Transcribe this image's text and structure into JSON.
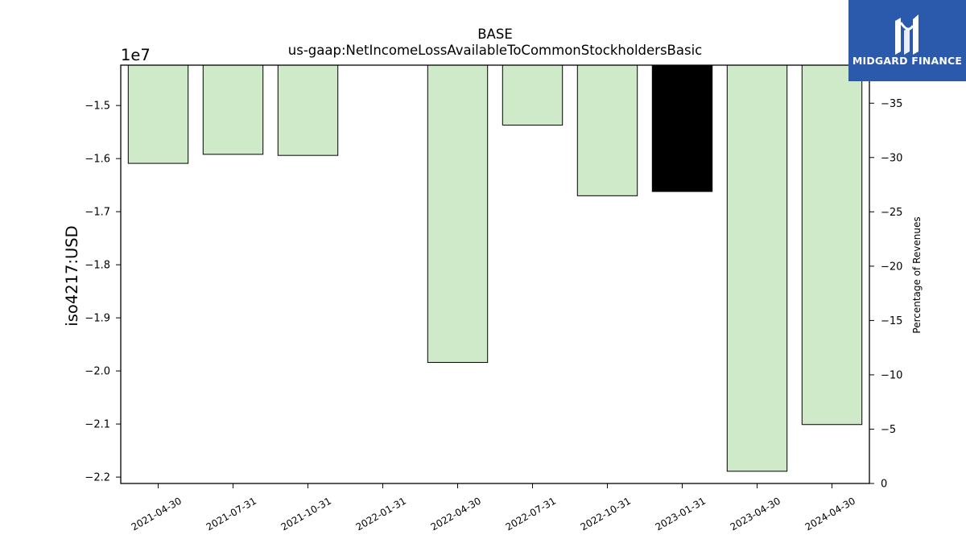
{
  "logo": {
    "text": "MIDGARD FINANCE",
    "background": "#2b5aac"
  },
  "chart_data": {
    "type": "bar",
    "title": "BASE",
    "subtitle": "us-gaap:NetIncomeLossAvailableToCommonStockholdersBasic",
    "ylabel": "iso4217:USD",
    "y2label": "Percentage of Revenues",
    "offset_text": "1e7",
    "categories": [
      "2021-04-30",
      "2021-07-31",
      "2021-10-31",
      "2022-01-31",
      "2022-04-30",
      "2022-07-31",
      "2022-10-31",
      "2023-01-31",
      "2023-04-30",
      "2024-04-30"
    ],
    "values": [
      -16090000,
      -15920000,
      -15940000,
      null,
      -19840000,
      -15370000,
      -16700000,
      -16620000,
      -21890000,
      -21010000
    ],
    "bar_colors": [
      "#cfeac8",
      "#cfeac8",
      "#cfeac8",
      "#cfeac8",
      "#cfeac8",
      "#cfeac8",
      "#cfeac8",
      "#000000",
      "#cfeac8",
      "#cfeac8"
    ],
    "ylim": [
      -22120000,
      -14240000
    ],
    "yticks": [
      -15000000,
      -16000000,
      -17000000,
      -18000000,
      -19000000,
      -20000000,
      -21000000,
      -22000000
    ],
    "ytick_labels": [
      "−1.5",
      "−1.6",
      "−1.7",
      "−1.8",
      "−1.9",
      "−2.0",
      "−2.1",
      "−2.2"
    ],
    "y2lim": [
      0,
      -38.5
    ],
    "y2ticks": [
      -35,
      -30,
      -25,
      -20,
      -15,
      -10,
      -5,
      0
    ],
    "y2tick_labels": [
      "−35",
      "−30",
      "−25",
      "−20",
      "−15",
      "−10",
      "−5",
      "0"
    ],
    "grid": false
  }
}
